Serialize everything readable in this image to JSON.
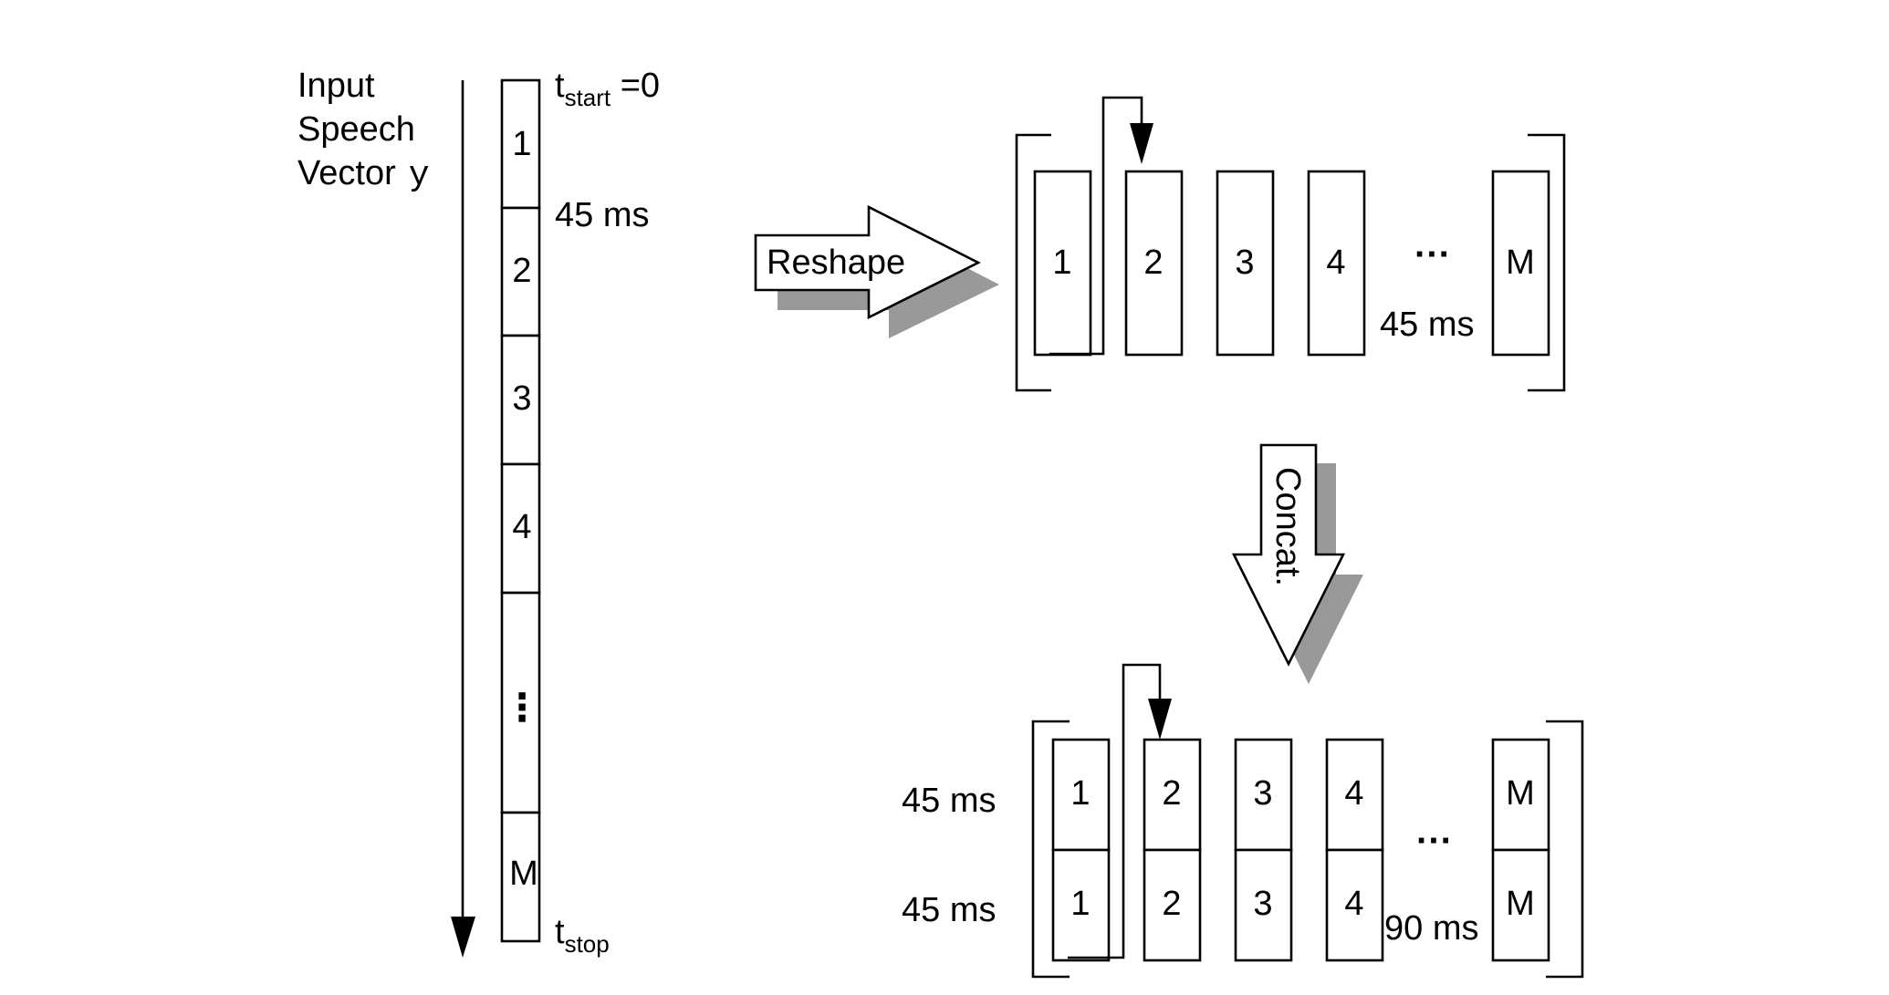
{
  "input_label": {
    "line1": "Input",
    "line2": "Speech",
    "line3": "Vector",
    "symbol": "y"
  },
  "t_start": {
    "base": "t",
    "sub": "start",
    "rest": " =0"
  },
  "t_stop": {
    "base": "t",
    "sub": "stop"
  },
  "frame_length": "45 ms",
  "segments": [
    "1",
    "2",
    "3",
    "4",
    "⋮",
    "M"
  ],
  "reshape_label": "Reshape",
  "concat_label": "Concat.",
  "matrix_columns": [
    "1",
    "2",
    "3",
    "4",
    "M"
  ],
  "ellipsis": "···",
  "row_labels": [
    "45 ms",
    "45 ms"
  ],
  "total_length": "90 ms",
  "colors": {
    "stroke": "#000000",
    "shadow": "#999999",
    "background": "#ffffff"
  }
}
